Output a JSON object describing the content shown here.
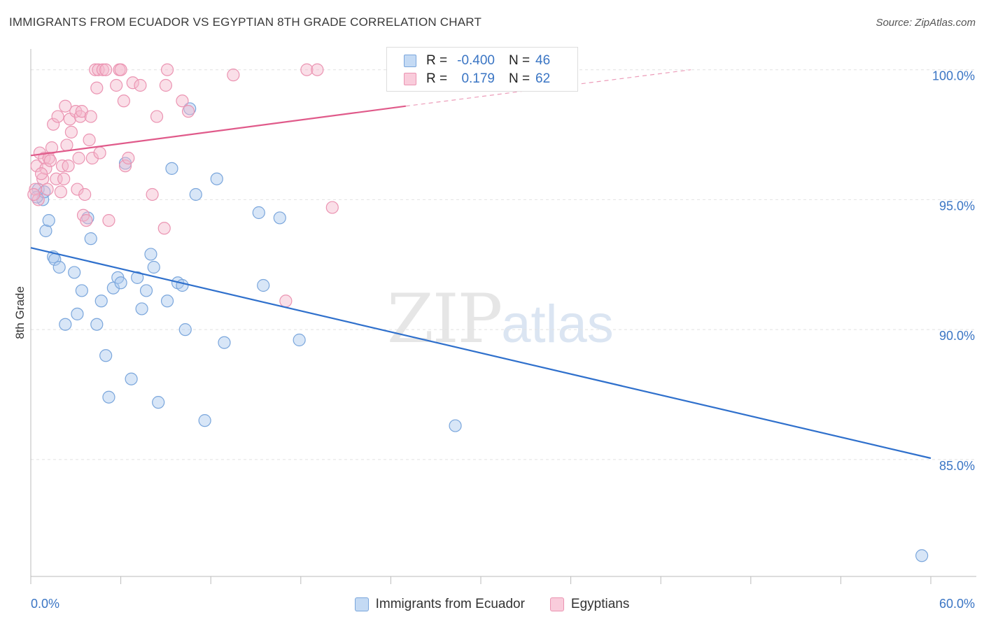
{
  "header": {
    "title": "IMMIGRANTS FROM ECUADOR VS EGYPTIAN 8TH GRADE CORRELATION CHART",
    "source": "Source: ZipAtlas.com"
  },
  "legend_box": {
    "rows": [
      {
        "r_label": "R =",
        "r_value": "-0.400",
        "n_label": "N =",
        "n_value": "46"
      },
      {
        "r_label": "R =",
        "r_value": "0.179",
        "n_label": "N =",
        "n_value": "62"
      }
    ]
  },
  "watermark": {
    "zip": "ZIP",
    "atlas": "atlas"
  },
  "colors": {
    "blue_fill": "#a9c8ee",
    "blue_stroke": "#7aa6dc",
    "blue_line": "#2f70cc",
    "pink_fill": "#f5b8cc",
    "pink_stroke": "#eb94b2",
    "pink_line": "#e05a8a",
    "axis_text": "#3a75c4",
    "grid": "#e2e2e2"
  },
  "chart_data": {
    "type": "scatter",
    "title": "IMMIGRANTS FROM ECUADOR VS EGYPTIAN 8TH GRADE CORRELATION CHART",
    "xlabel": "",
    "ylabel": "8th Grade",
    "xlim": [
      0,
      60
    ],
    "ylim": [
      80.5,
      100.8
    ],
    "x_tick_labels": [
      "0.0%",
      "60.0%"
    ],
    "y_ticks": [
      85,
      90,
      95,
      100
    ],
    "y_tick_labels": [
      "85.0%",
      "90.0%",
      "95.0%",
      "100.0%"
    ],
    "grid": true,
    "legend_position": "bottom",
    "series": [
      {
        "name": "Immigrants from Ecuador",
        "color": "blue",
        "trend": {
          "x": [
            0,
            60
          ],
          "y": [
            93.15,
            85.05
          ],
          "dashed_from": null
        },
        "points": [
          [
            0.5,
            95.4
          ],
          [
            0.8,
            95.0
          ],
          [
            1.0,
            93.8
          ],
          [
            1.2,
            94.2
          ],
          [
            1.5,
            92.8
          ],
          [
            1.6,
            92.7
          ],
          [
            1.9,
            92.4
          ],
          [
            2.3,
            90.2
          ],
          [
            2.9,
            92.2
          ],
          [
            3.1,
            90.6
          ],
          [
            3.4,
            91.5
          ],
          [
            3.8,
            94.3
          ],
          [
            4.0,
            93.5
          ],
          [
            4.4,
            90.2
          ],
          [
            4.7,
            91.1
          ],
          [
            5.0,
            89.0
          ],
          [
            5.2,
            87.4
          ],
          [
            5.5,
            91.6
          ],
          [
            5.8,
            92.0
          ],
          [
            6.0,
            91.8
          ],
          [
            6.3,
            96.4
          ],
          [
            6.7,
            88.1
          ],
          [
            7.1,
            92.0
          ],
          [
            7.4,
            90.8
          ],
          [
            7.7,
            91.5
          ],
          [
            8.0,
            92.9
          ],
          [
            8.2,
            92.4
          ],
          [
            8.5,
            87.2
          ],
          [
            9.1,
            91.1
          ],
          [
            9.4,
            96.2
          ],
          [
            9.8,
            91.8
          ],
          [
            10.1,
            91.7
          ],
          [
            10.3,
            90.0
          ],
          [
            10.6,
            98.5
          ],
          [
            11.0,
            95.2
          ],
          [
            11.6,
            86.5
          ],
          [
            12.4,
            95.8
          ],
          [
            12.9,
            89.5
          ],
          [
            15.2,
            94.5
          ],
          [
            15.5,
            91.7
          ],
          [
            16.6,
            94.3
          ],
          [
            17.9,
            89.6
          ],
          [
            28.3,
            86.3
          ],
          [
            59.4,
            81.3
          ],
          [
            0.4,
            95.1
          ],
          [
            0.9,
            95.3
          ]
        ]
      },
      {
        "name": "Egyptians",
        "color": "pink",
        "trend": {
          "x": [
            0,
            25,
            44
          ],
          "y": [
            96.7,
            98.6,
            100.0
          ],
          "dashed_from": 25
        },
        "points": [
          [
            0.3,
            95.4
          ],
          [
            0.4,
            96.3
          ],
          [
            0.5,
            95.0
          ],
          [
            0.6,
            96.8
          ],
          [
            0.8,
            95.8
          ],
          [
            0.9,
            96.6
          ],
          [
            1.0,
            96.2
          ],
          [
            1.1,
            95.4
          ],
          [
            1.2,
            96.6
          ],
          [
            1.4,
            97.0
          ],
          [
            1.5,
            97.9
          ],
          [
            1.7,
            95.8
          ],
          [
            1.8,
            98.2
          ],
          [
            2.0,
            95.3
          ],
          [
            2.1,
            96.3
          ],
          [
            2.3,
            98.6
          ],
          [
            2.4,
            97.1
          ],
          [
            2.5,
            96.3
          ],
          [
            2.6,
            98.1
          ],
          [
            2.7,
            97.6
          ],
          [
            3.0,
            98.4
          ],
          [
            3.1,
            95.4
          ],
          [
            3.2,
            96.6
          ],
          [
            3.3,
            98.2
          ],
          [
            3.4,
            98.4
          ],
          [
            3.5,
            94.4
          ],
          [
            3.6,
            95.2
          ],
          [
            3.7,
            94.2
          ],
          [
            3.9,
            97.3
          ],
          [
            4.0,
            98.2
          ],
          [
            4.1,
            96.6
          ],
          [
            4.3,
            100.0
          ],
          [
            4.4,
            99.3
          ],
          [
            4.5,
            100.0
          ],
          [
            4.6,
            96.8
          ],
          [
            4.8,
            100.0
          ],
          [
            5.0,
            100.0
          ],
          [
            5.2,
            94.2
          ],
          [
            5.7,
            99.4
          ],
          [
            5.9,
            100.0
          ],
          [
            6.0,
            100.0
          ],
          [
            6.2,
            98.8
          ],
          [
            6.3,
            96.3
          ],
          [
            6.5,
            96.6
          ],
          [
            6.8,
            99.5
          ],
          [
            7.3,
            99.4
          ],
          [
            8.1,
            95.2
          ],
          [
            8.4,
            98.2
          ],
          [
            8.9,
            93.9
          ],
          [
            9.0,
            99.4
          ],
          [
            9.1,
            100.0
          ],
          [
            10.1,
            98.8
          ],
          [
            10.5,
            98.4
          ],
          [
            13.5,
            99.8
          ],
          [
            17.0,
            91.1
          ],
          [
            18.4,
            100.0
          ],
          [
            19.1,
            100.0
          ],
          [
            20.1,
            94.7
          ],
          [
            0.2,
            95.2
          ],
          [
            0.7,
            96.0
          ],
          [
            1.3,
            96.5
          ],
          [
            2.2,
            95.8
          ]
        ]
      }
    ]
  },
  "bottom_legend": {
    "items": [
      {
        "label": "Immigrants from Ecuador"
      },
      {
        "label": "Egyptians"
      }
    ]
  }
}
